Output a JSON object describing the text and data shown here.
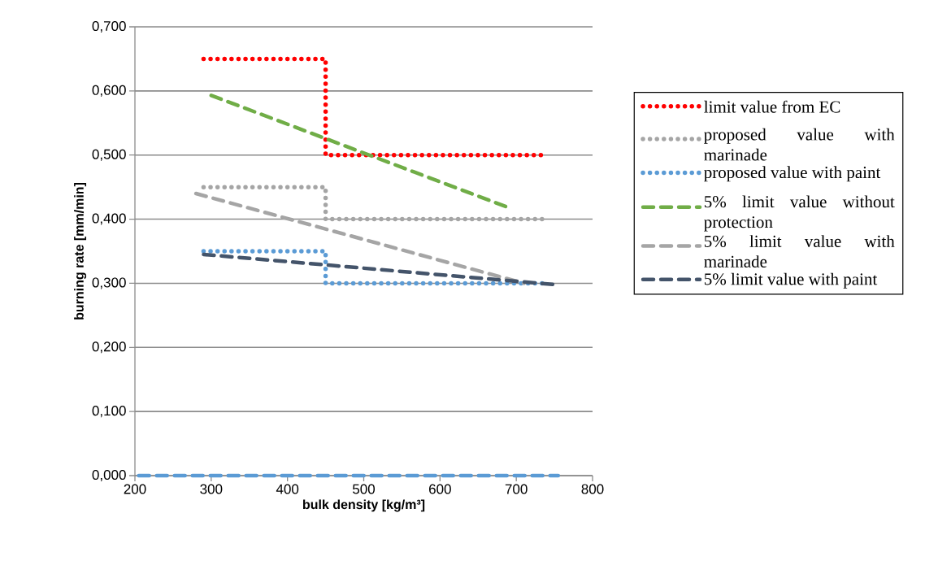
{
  "chart_data": {
    "type": "line",
    "xlabel": "bulk density [kg/m³]",
    "ylabel": "burning rate [mm/min]",
    "xlim": [
      200,
      800
    ],
    "xticks": [
      200,
      300,
      400,
      500,
      600,
      700,
      800
    ],
    "ylim": [
      0,
      0.7
    ],
    "yticks": [
      {
        "value": 0,
        "label": "0,000"
      },
      {
        "value": 0.1,
        "label": "0,100"
      },
      {
        "value": 0.2,
        "label": "0,200"
      },
      {
        "value": 0.3,
        "label": "0,300"
      },
      {
        "value": 0.4,
        "label": "0,400"
      },
      {
        "value": 0.5,
        "label": "0,500"
      },
      {
        "value": 0.6,
        "label": "0,600"
      },
      {
        "value": 0.7,
        "label": "0,700"
      }
    ],
    "grid": "y",
    "legend": "right",
    "series": [
      {
        "name": "limit value from EC",
        "color": "#ff0000",
        "line_style": "dotted",
        "x": [
          290,
          450,
          450,
          740
        ],
        "values": [
          0.65,
          0.65,
          0.5,
          0.5
        ]
      },
      {
        "name": "proposed value with marinade",
        "color": "#a5a5a5",
        "line_style": "dotted",
        "x": [
          290,
          450,
          450,
          740
        ],
        "values": [
          0.45,
          0.45,
          0.4,
          0.4
        ]
      },
      {
        "name": "proposed value with paint",
        "color": "#5b9bd5",
        "line_style": "dotted",
        "x": [
          290,
          450,
          450,
          740
        ],
        "values": [
          0.35,
          0.35,
          0.3,
          0.3
        ]
      },
      {
        "name": "5% limit value without protection",
        "color": "#70ad47",
        "line_style": "dashed",
        "x": [
          300,
          690
        ],
        "values": [
          0.593,
          0.418
        ]
      },
      {
        "name": "5% limit value with marinade",
        "color": "#a5a5a5",
        "line_style": "dashed",
        "x": [
          280,
          710
        ],
        "values": [
          0.44,
          0.3
        ]
      },
      {
        "name": "5% limit value with paint",
        "color": "#44546a",
        "line_style": "dashed",
        "x": [
          290,
          750
        ],
        "values": [
          0.345,
          0.298
        ]
      },
      {
        "color": "#5b9bd5",
        "line_style": "dashed",
        "x": [
          205,
          755
        ],
        "values": [
          0,
          0
        ]
      }
    ]
  }
}
